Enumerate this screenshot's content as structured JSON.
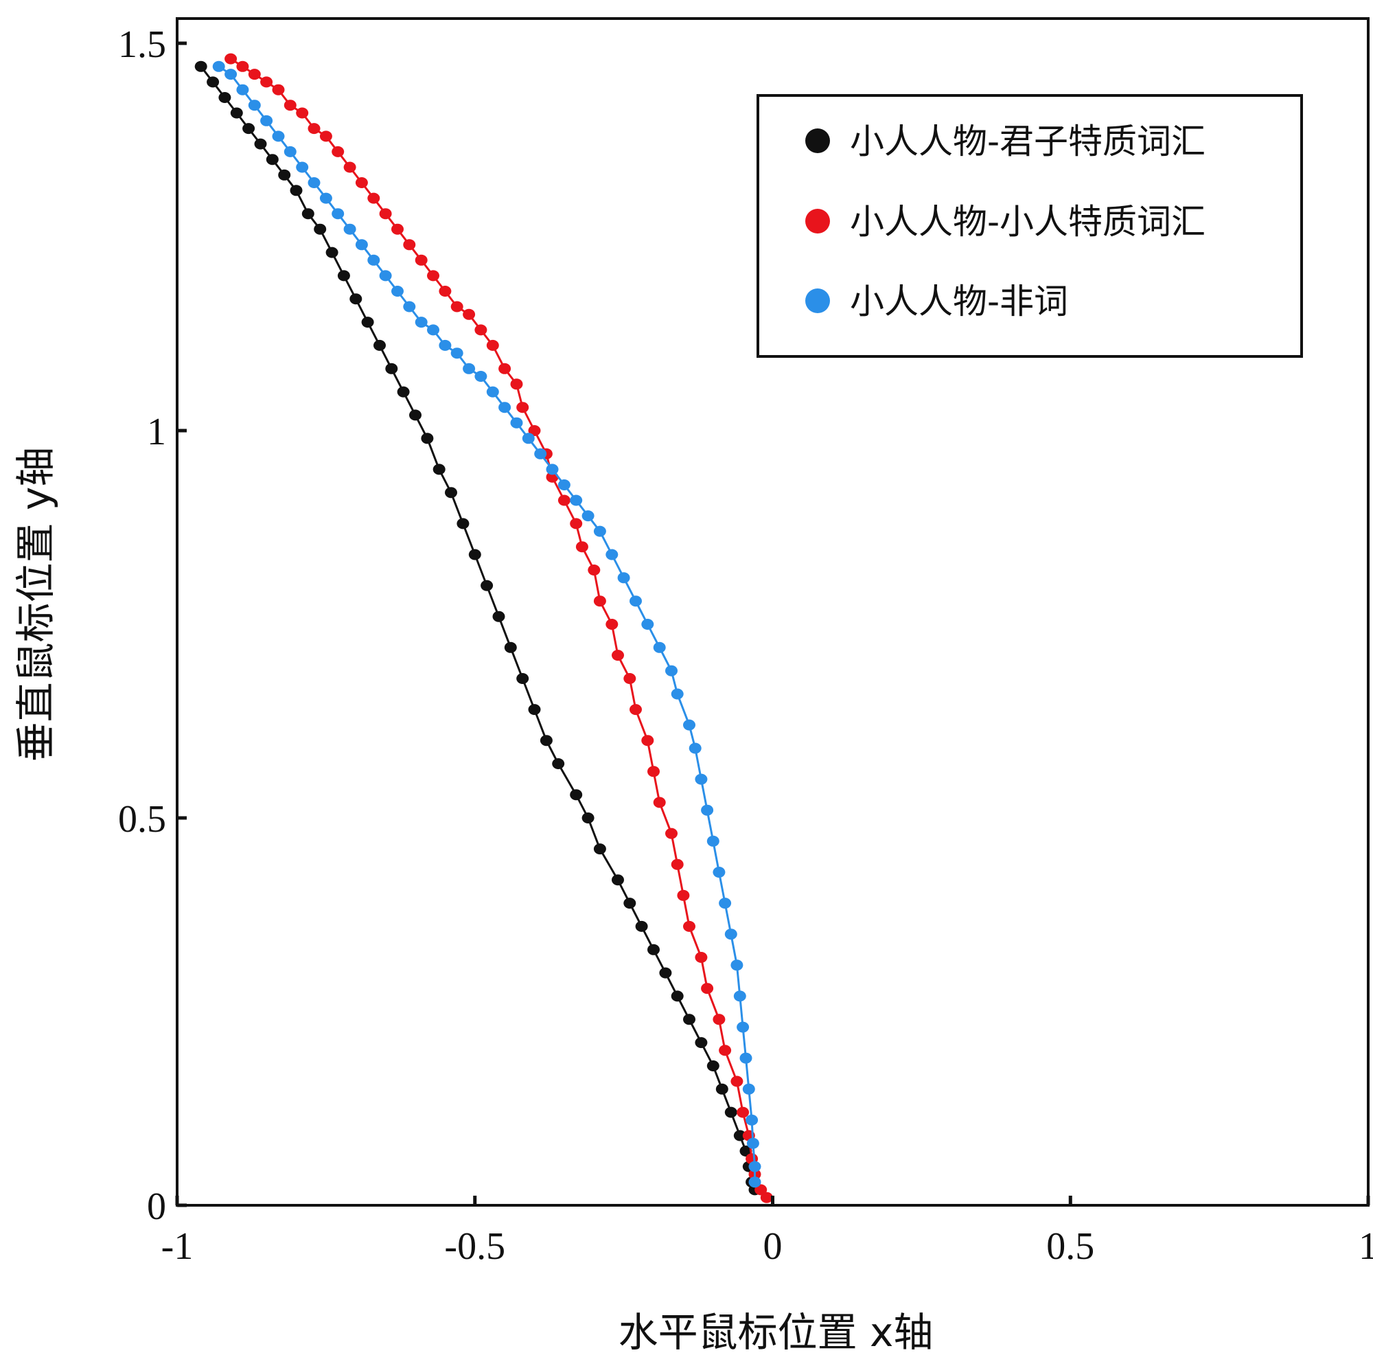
{
  "chart_data": {
    "type": "line",
    "title": "",
    "xlabel": "水平鼠标位置 x轴",
    "ylabel": "垂直鼠标位置 y轴",
    "xlim": [
      -1,
      1
    ],
    "ylim": [
      0,
      1.5
    ],
    "xticks": [
      {
        "value": -1,
        "label": "-1"
      },
      {
        "value": -0.5,
        "label": "-0.5"
      },
      {
        "value": 0,
        "label": "0"
      },
      {
        "value": 0.5,
        "label": "0.5"
      },
      {
        "value": 1,
        "label": "1"
      }
    ],
    "yticks": [
      {
        "value": 0,
        "label": "0"
      },
      {
        "value": 0.5,
        "label": "0.5"
      },
      {
        "value": 1,
        "label": "1"
      },
      {
        "value": 1.5,
        "label": "1.5"
      }
    ],
    "legend_position": "top-right",
    "series": [
      {
        "name": "小人人物-君子特质词汇",
        "color": "#111111",
        "points": [
          [
            -0.96,
            1.47
          ],
          [
            -0.94,
            1.45
          ],
          [
            -0.92,
            1.43
          ],
          [
            -0.9,
            1.41
          ],
          [
            -0.88,
            1.39
          ],
          [
            -0.86,
            1.37
          ],
          [
            -0.84,
            1.35
          ],
          [
            -0.82,
            1.33
          ],
          [
            -0.8,
            1.31
          ],
          [
            -0.78,
            1.28
          ],
          [
            -0.76,
            1.26
          ],
          [
            -0.74,
            1.23
          ],
          [
            -0.72,
            1.2
          ],
          [
            -0.7,
            1.17
          ],
          [
            -0.68,
            1.14
          ],
          [
            -0.66,
            1.11
          ],
          [
            -0.64,
            1.08
          ],
          [
            -0.62,
            1.05
          ],
          [
            -0.6,
            1.02
          ],
          [
            -0.58,
            0.99
          ],
          [
            -0.56,
            0.95
          ],
          [
            -0.54,
            0.92
          ],
          [
            -0.52,
            0.88
          ],
          [
            -0.5,
            0.84
          ],
          [
            -0.48,
            0.8
          ],
          [
            -0.46,
            0.76
          ],
          [
            -0.44,
            0.72
          ],
          [
            -0.42,
            0.68
          ],
          [
            -0.4,
            0.64
          ],
          [
            -0.38,
            0.6
          ],
          [
            -0.36,
            0.57
          ],
          [
            -0.33,
            0.53
          ],
          [
            -0.31,
            0.5
          ],
          [
            -0.29,
            0.46
          ],
          [
            -0.26,
            0.42
          ],
          [
            -0.24,
            0.39
          ],
          [
            -0.22,
            0.36
          ],
          [
            -0.2,
            0.33
          ],
          [
            -0.18,
            0.3
          ],
          [
            -0.16,
            0.27
          ],
          [
            -0.14,
            0.24
          ],
          [
            -0.12,
            0.21
          ],
          [
            -0.1,
            0.18
          ],
          [
            -0.085,
            0.15
          ],
          [
            -0.07,
            0.12
          ],
          [
            -0.055,
            0.09
          ],
          [
            -0.045,
            0.07
          ],
          [
            -0.04,
            0.05
          ],
          [
            -0.035,
            0.03
          ],
          [
            -0.03,
            0.02
          ]
        ]
      },
      {
        "name": "小人人物-小人特质词汇",
        "color": "#e8141c",
        "points": [
          [
            -0.91,
            1.48
          ],
          [
            -0.89,
            1.47
          ],
          [
            -0.87,
            1.46
          ],
          [
            -0.85,
            1.45
          ],
          [
            -0.83,
            1.44
          ],
          [
            -0.81,
            1.42
          ],
          [
            -0.79,
            1.41
          ],
          [
            -0.77,
            1.39
          ],
          [
            -0.75,
            1.38
          ],
          [
            -0.73,
            1.36
          ],
          [
            -0.71,
            1.34
          ],
          [
            -0.69,
            1.32
          ],
          [
            -0.67,
            1.3
          ],
          [
            -0.65,
            1.28
          ],
          [
            -0.63,
            1.26
          ],
          [
            -0.61,
            1.24
          ],
          [
            -0.59,
            1.22
          ],
          [
            -0.57,
            1.2
          ],
          [
            -0.55,
            1.18
          ],
          [
            -0.53,
            1.16
          ],
          [
            -0.51,
            1.15
          ],
          [
            -0.49,
            1.13
          ],
          [
            -0.47,
            1.11
          ],
          [
            -0.45,
            1.08
          ],
          [
            -0.43,
            1.06
          ],
          [
            -0.42,
            1.03
          ],
          [
            -0.4,
            1.0
          ],
          [
            -0.38,
            0.97
          ],
          [
            -0.37,
            0.94
          ],
          [
            -0.35,
            0.91
          ],
          [
            -0.33,
            0.88
          ],
          [
            -0.32,
            0.85
          ],
          [
            -0.3,
            0.82
          ],
          [
            -0.29,
            0.78
          ],
          [
            -0.27,
            0.75
          ],
          [
            -0.26,
            0.71
          ],
          [
            -0.24,
            0.68
          ],
          [
            -0.23,
            0.64
          ],
          [
            -0.21,
            0.6
          ],
          [
            -0.2,
            0.56
          ],
          [
            -0.19,
            0.52
          ],
          [
            -0.17,
            0.48
          ],
          [
            -0.16,
            0.44
          ],
          [
            -0.15,
            0.4
          ],
          [
            -0.14,
            0.36
          ],
          [
            -0.12,
            0.32
          ],
          [
            -0.11,
            0.28
          ],
          [
            -0.09,
            0.24
          ],
          [
            -0.08,
            0.2
          ],
          [
            -0.06,
            0.16
          ],
          [
            -0.05,
            0.12
          ],
          [
            -0.04,
            0.09
          ],
          [
            -0.035,
            0.06
          ],
          [
            -0.03,
            0.04
          ],
          [
            -0.02,
            0.02
          ],
          [
            -0.01,
            0.01
          ]
        ]
      },
      {
        "name": "小人人物-非词",
        "color": "#2b8fe8",
        "points": [
          [
            -0.93,
            1.47
          ],
          [
            -0.91,
            1.46
          ],
          [
            -0.89,
            1.44
          ],
          [
            -0.87,
            1.42
          ],
          [
            -0.85,
            1.4
          ],
          [
            -0.83,
            1.38
          ],
          [
            -0.81,
            1.36
          ],
          [
            -0.79,
            1.34
          ],
          [
            -0.77,
            1.32
          ],
          [
            -0.75,
            1.3
          ],
          [
            -0.73,
            1.28
          ],
          [
            -0.71,
            1.26
          ],
          [
            -0.69,
            1.24
          ],
          [
            -0.67,
            1.22
          ],
          [
            -0.65,
            1.2
          ],
          [
            -0.63,
            1.18
          ],
          [
            -0.61,
            1.16
          ],
          [
            -0.59,
            1.14
          ],
          [
            -0.57,
            1.13
          ],
          [
            -0.55,
            1.11
          ],
          [
            -0.53,
            1.1
          ],
          [
            -0.51,
            1.08
          ],
          [
            -0.49,
            1.07
          ],
          [
            -0.47,
            1.05
          ],
          [
            -0.45,
            1.03
          ],
          [
            -0.43,
            1.01
          ],
          [
            -0.41,
            0.99
          ],
          [
            -0.39,
            0.97
          ],
          [
            -0.37,
            0.95
          ],
          [
            -0.35,
            0.93
          ],
          [
            -0.33,
            0.91
          ],
          [
            -0.31,
            0.89
          ],
          [
            -0.29,
            0.87
          ],
          [
            -0.27,
            0.84
          ],
          [
            -0.25,
            0.81
          ],
          [
            -0.23,
            0.78
          ],
          [
            -0.21,
            0.75
          ],
          [
            -0.19,
            0.72
          ],
          [
            -0.17,
            0.69
          ],
          [
            -0.16,
            0.66
          ],
          [
            -0.14,
            0.62
          ],
          [
            -0.13,
            0.59
          ],
          [
            -0.12,
            0.55
          ],
          [
            -0.11,
            0.51
          ],
          [
            -0.1,
            0.47
          ],
          [
            -0.09,
            0.43
          ],
          [
            -0.08,
            0.39
          ],
          [
            -0.07,
            0.35
          ],
          [
            -0.06,
            0.31
          ],
          [
            -0.055,
            0.27
          ],
          [
            -0.05,
            0.23
          ],
          [
            -0.045,
            0.19
          ],
          [
            -0.04,
            0.15
          ],
          [
            -0.035,
            0.11
          ],
          [
            -0.033,
            0.08
          ],
          [
            -0.03,
            0.05
          ],
          [
            -0.03,
            0.03
          ]
        ]
      }
    ]
  }
}
